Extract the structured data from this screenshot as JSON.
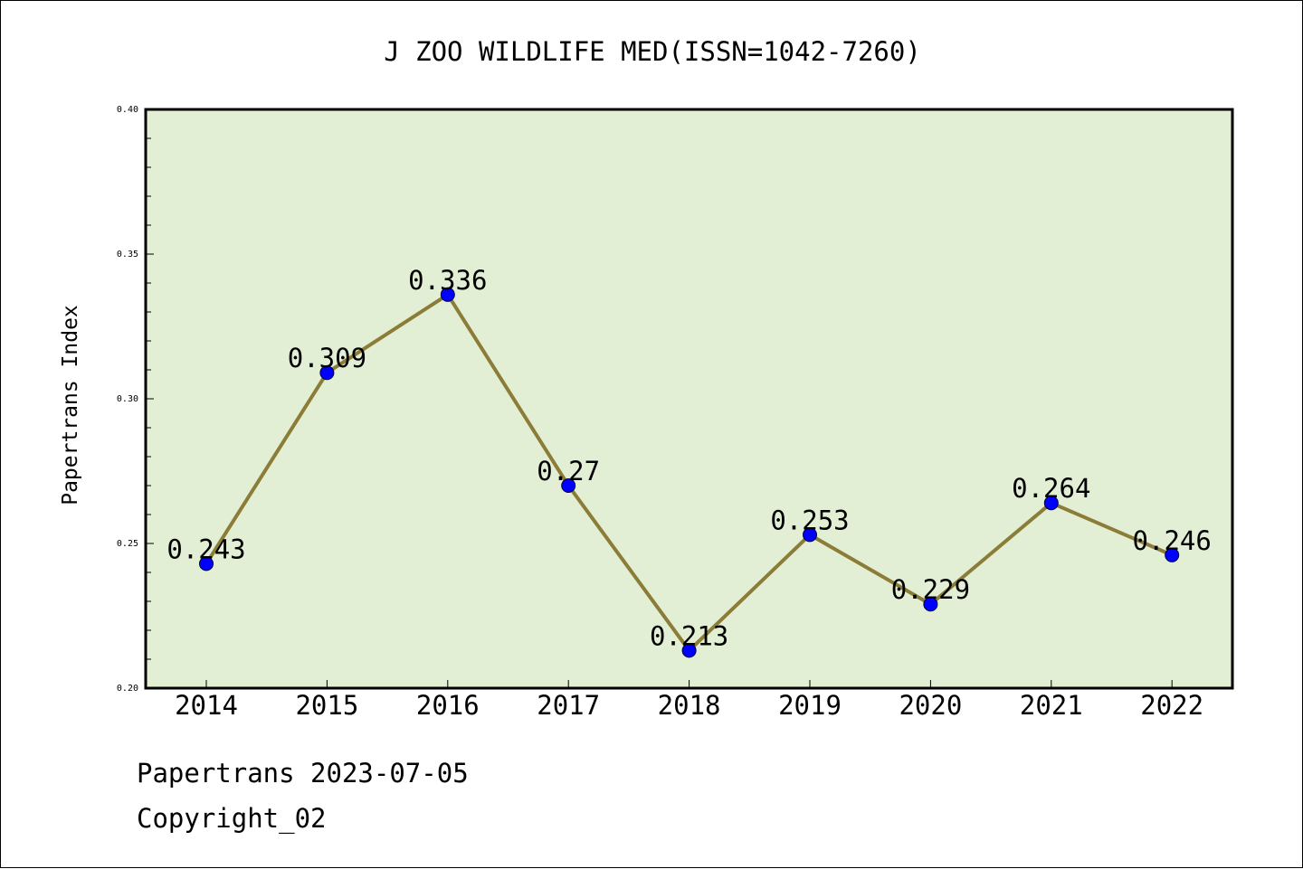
{
  "chart_data": {
    "type": "line",
    "title": "J ZOO WILDLIFE MED(ISSN=1042-7260)",
    "xlabel": "",
    "ylabel": "Papertrans Index",
    "categories": [
      "2014",
      "2015",
      "2016",
      "2017",
      "2018",
      "2019",
      "2020",
      "2021",
      "2022"
    ],
    "series": [
      {
        "values": [
          0.243,
          0.309,
          0.336,
          0.27,
          0.213,
          0.253,
          0.229,
          0.264,
          0.246
        ],
        "labels": [
          "0.243",
          "0.309",
          "0.336",
          "0.27",
          "0.213",
          "0.253",
          "0.229",
          "0.264",
          "0.246"
        ]
      }
    ],
    "ylim": [
      0.2,
      0.4
    ],
    "yticks": [
      "0.20",
      "0.25",
      "0.30",
      "0.35",
      "0.40"
    ],
    "grid": false,
    "colors": {
      "plot_background": "#e2efd5",
      "line": "#8b7d38",
      "marker": "#0000ff"
    }
  },
  "footer": {
    "line1": "Papertrans 2023-07-05",
    "line2": "Copyright_02"
  }
}
